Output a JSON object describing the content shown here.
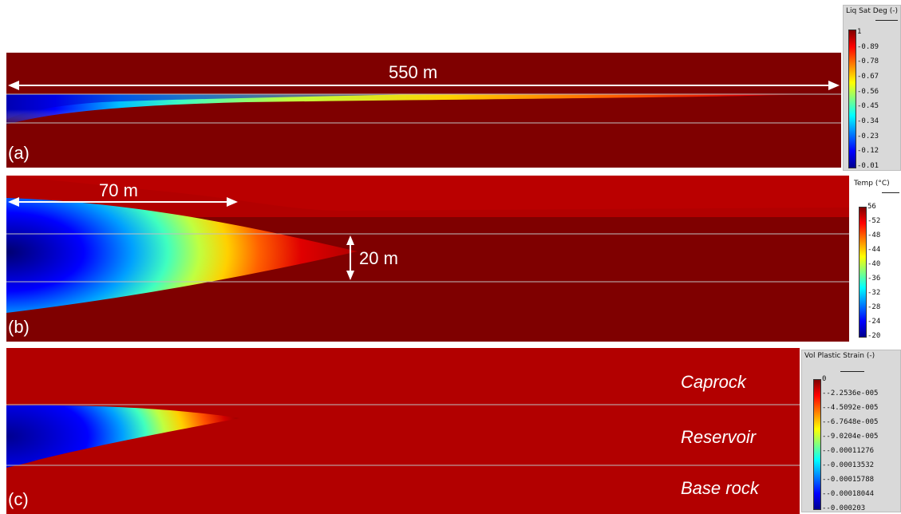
{
  "panels": {
    "a": {
      "letter": "(a)",
      "dimension": "550 m",
      "legend": {
        "title": "Liq Sat Deg (-)",
        "ticks": [
          "1",
          "0.89",
          "0.78",
          "0.67",
          "0.56",
          "0.45",
          "0.34",
          "0.23",
          "0.12",
          "0.01"
        ]
      }
    },
    "b": {
      "letter": "(b)",
      "dimension_horizontal": "70 m",
      "dimension_vertical": "20 m",
      "legend": {
        "title": "Temp (°C)",
        "ticks": [
          "56",
          "52",
          "48",
          "44",
          "40",
          "36",
          "32",
          "28",
          "24",
          "20"
        ]
      }
    },
    "c": {
      "letter": "(c)",
      "layers": {
        "caprock": "Caprock",
        "reservoir": "Reservoir",
        "base_rock": "Base rock"
      },
      "legend": {
        "title": "Vol Plastic Strain (-)",
        "ticks": [
          "0",
          "-2.2536e-005",
          "-4.5092e-005",
          "-6.7648e-005",
          "-9.0204e-005",
          "-0.00011276",
          "-0.00013532",
          "-0.00015788",
          "-0.00018044",
          "-0.000203"
        ]
      }
    }
  },
  "colors": {
    "background_field": "#7f0000",
    "jet_dark_red": "#800000",
    "jet_red": "#ff0000",
    "jet_orange": "#ff8000",
    "jet_yellow": "#ffff00",
    "jet_green": "#80ff80",
    "jet_cyan": "#00ffff",
    "jet_blue": "#0000ff",
    "jet_dark_blue": "#00008f",
    "annotation": "#ffffff",
    "layer_boundary": "#bfbfbf"
  }
}
